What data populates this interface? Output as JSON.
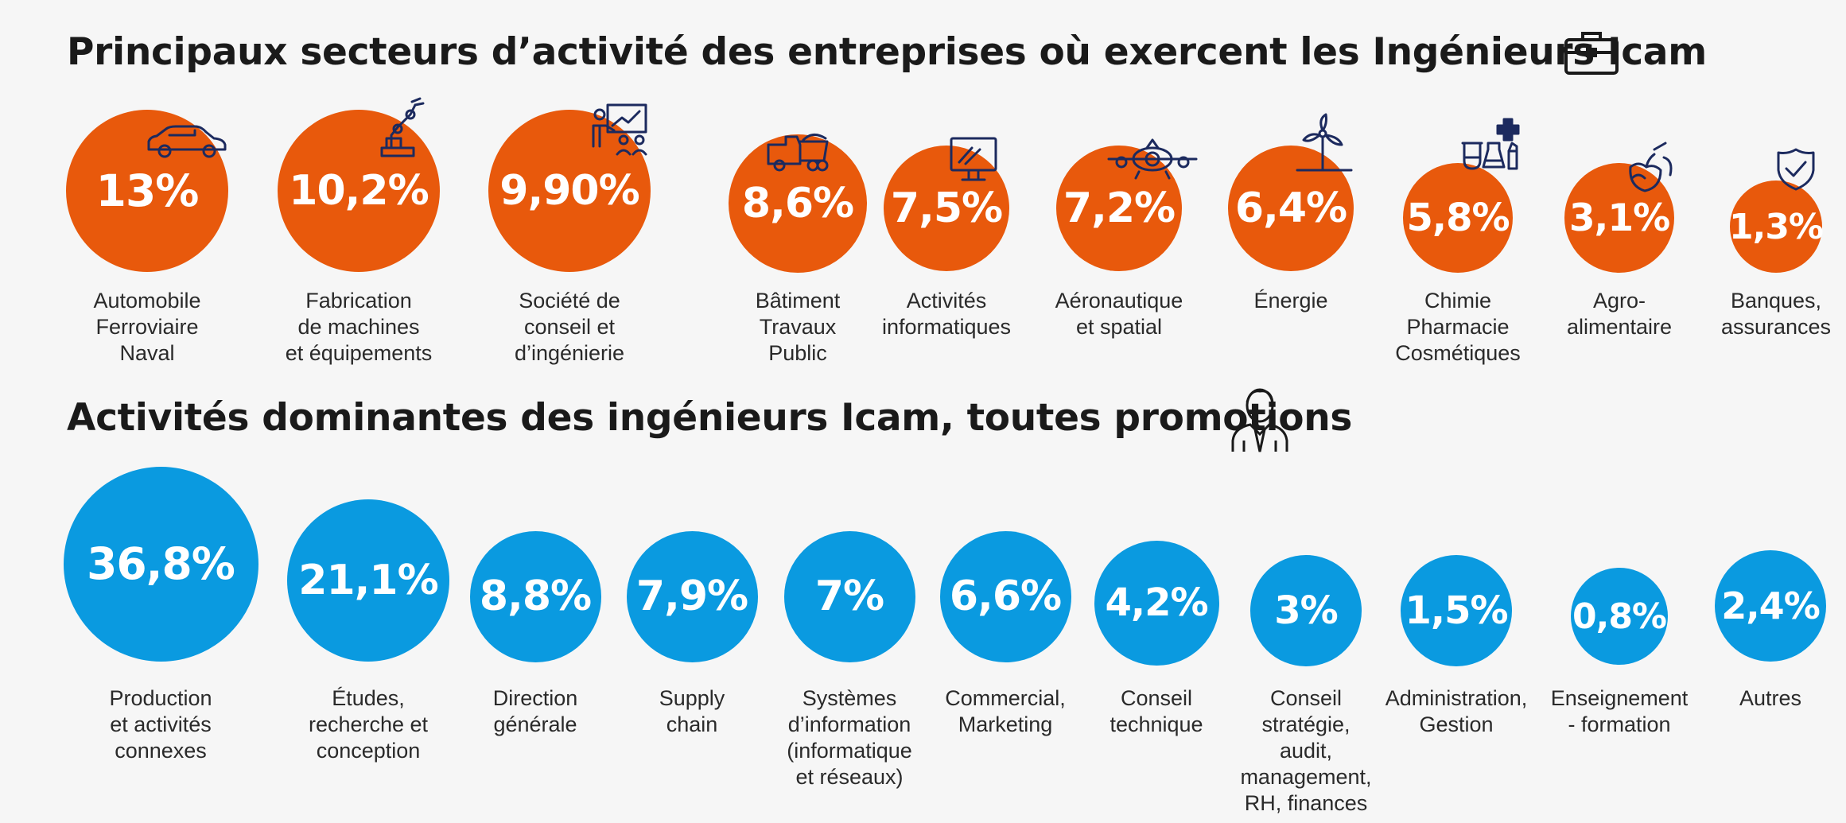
{
  "titles": {
    "sectors": "Principaux secteurs d’activité des entreprises où exercent les Ingénieurs Icam",
    "activities": "Activités dominantes des ingénieurs Icam, toutes promotions"
  },
  "colors": {
    "sectors": "#e8590c",
    "activities": "#0a9ae0",
    "icon": "#1c2a5e"
  },
  "chart_data": [
    {
      "type": "bubble",
      "title": "Principaux secteurs d’activité des entreprises où exercent les Ingénieurs Icam",
      "unit": "%",
      "categories": [
        "Automobile\nFerroviaire\nNaval",
        "Fabrication\nde machines\net équipements",
        "Société de\nconseil et\nd’ingénierie",
        "Bâtiment\nTravaux\nPublic",
        "Activités\ninformatiques",
        "Aéronautique\net spatial",
        "Énergie",
        "Chimie\nPharmacie\nCosmétiques",
        "Agro-\nalimentaire",
        "Banques,\nassurances"
      ],
      "values": [
        13,
        10.2,
        9.9,
        8.6,
        7.5,
        7.2,
        6.4,
        5.8,
        3.1,
        1.3
      ],
      "value_labels": [
        "13%",
        "10,2%",
        "9,90%",
        "8,6%",
        "7,5%",
        "7,2%",
        "6,4%",
        "5,8%",
        "3,1%",
        "1,3%"
      ],
      "icons": [
        "car-icon",
        "robot-arm-icon",
        "presentation-icon",
        "dump-truck-icon",
        "computer-monitor-icon",
        "airplane-icon",
        "wind-turbine-icon",
        "chemistry-icon",
        "food-icon",
        "shield-check-icon"
      ]
    },
    {
      "type": "bubble",
      "title": "Activités dominantes des ingénieurs Icam, toutes promotions",
      "unit": "%",
      "categories": [
        "Production\net activités\nconnexes",
        "Études,\nrecherche et\nconception",
        "Direction\ngénérale",
        "Supply\nchain",
        "Systèmes\nd’information\n(informatique\net réseaux)",
        "Commercial,\nMarketing",
        "Conseil\ntechnique",
        "Conseil\nstratégie,\naudit,\nmanagement,\nRH, finances",
        "Administration,\nGestion",
        "Enseignement\n- formation",
        "Autres"
      ],
      "values": [
        36.8,
        21.1,
        8.8,
        7.9,
        7,
        6.6,
        4.2,
        3,
        1.5,
        0.8,
        2.4
      ],
      "value_labels": [
        "36,8%",
        "21,1%",
        "8,8%",
        "7,9%",
        "7%",
        "6,6%",
        "4,2%",
        "3%",
        "1,5%",
        "0,8%",
        "2,4%"
      ]
    }
  ]
}
